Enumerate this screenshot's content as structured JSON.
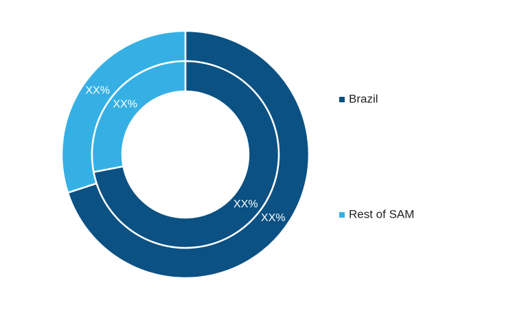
{
  "chart_data": {
    "type": "donut",
    "categories": [
      "Brazil",
      "Rest of SAM"
    ],
    "colors": [
      "#0b5183",
      "#36b0e4"
    ],
    "rings": [
      {
        "values": [
          70,
          30
        ],
        "value_labels": [
          "XX%",
          "XX%"
        ]
      },
      {
        "values": [
          72,
          28
        ],
        "value_labels": [
          "XX%",
          "XX%"
        ]
      }
    ],
    "legend": "right"
  }
}
